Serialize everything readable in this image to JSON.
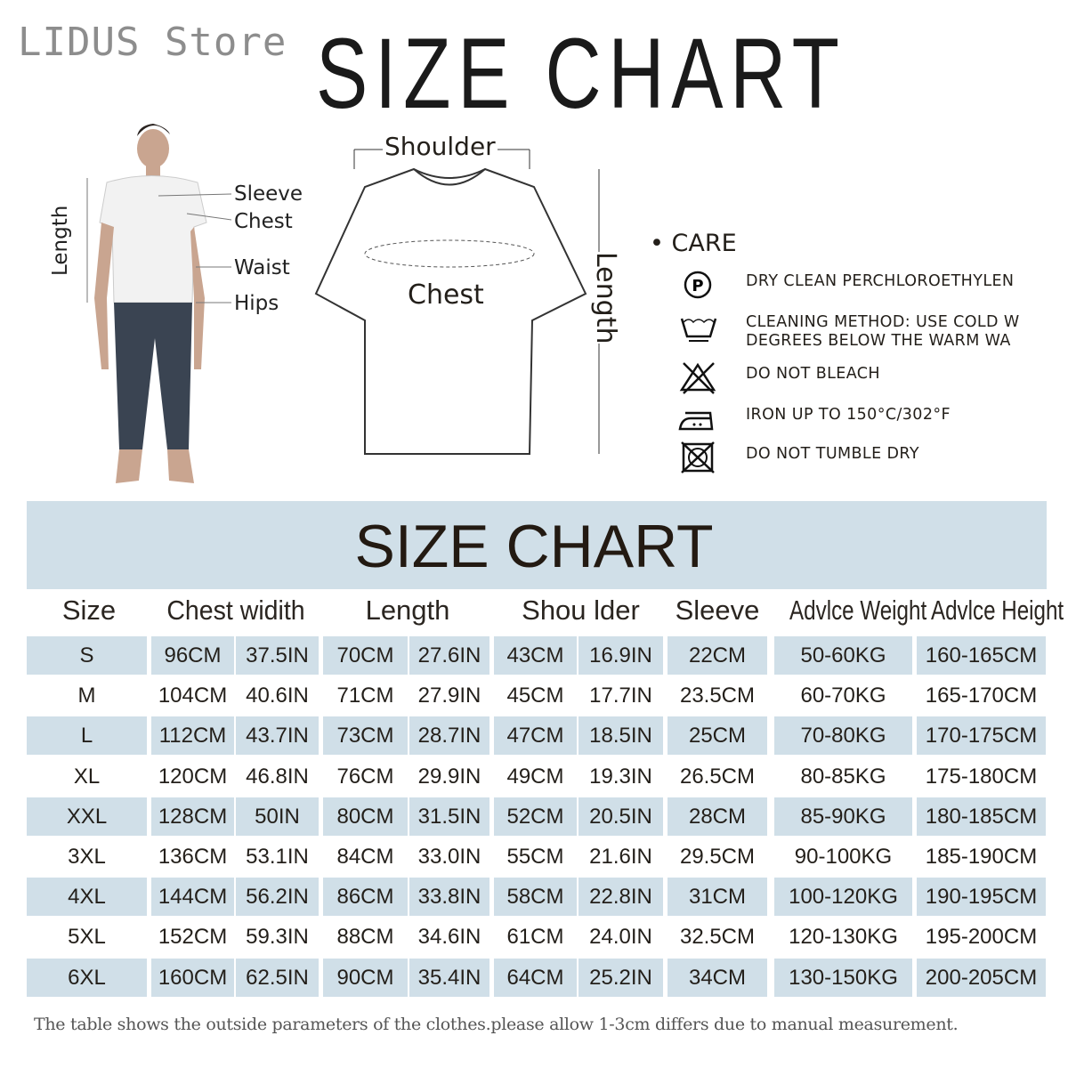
{
  "store_name": "LIDUS Store",
  "title": "SIZE CHART",
  "model_labels": {
    "length": "Length",
    "sleeve": "Sleeve",
    "chest": "Chest",
    "waist": "Waist",
    "hips": "Hips"
  },
  "shirt_labels": {
    "shoulder": "Shoulder",
    "chest": "Chest",
    "length": "Length"
  },
  "care": {
    "heading": "CARE",
    "items": [
      {
        "icon": "dry-clean-p-icon",
        "lines": [
          "DRY CLEAN PERCHLOROETHYLEN"
        ]
      },
      {
        "icon": "wash-tub-icon",
        "lines": [
          "CLEANING METHOD: USE COLD W",
          "DEGREES BELOW THE WARM WA"
        ]
      },
      {
        "icon": "no-bleach-icon",
        "lines": [
          "DO NOT BLEACH"
        ]
      },
      {
        "icon": "iron-icon",
        "lines": [
          "IRON UP TO 150°C/302°F"
        ]
      },
      {
        "icon": "no-tumble-dry-icon",
        "lines": [
          "DO NOT TUMBLE DRY"
        ]
      }
    ]
  },
  "colors": {
    "band": "#d0dfe8",
    "text": "#231f1a"
  },
  "table": {
    "title": "SIZE CHART",
    "headers": [
      "Size",
      "Chest widith",
      "Length",
      "Shou lder",
      "Sleeve",
      "Advlce Weight",
      "Advlce Height"
    ],
    "rows": [
      [
        "S",
        "96CM",
        "37.5IN",
        "70CM",
        "27.6IN",
        "43CM",
        "16.9IN",
        "22CM",
        "50-60KG",
        "160-165CM"
      ],
      [
        "M",
        "104CM",
        "40.6IN",
        "71CM",
        "27.9IN",
        "45CM",
        "17.7IN",
        "23.5CM",
        "60-70KG",
        "165-170CM"
      ],
      [
        "L",
        "112CM",
        "43.7IN",
        "73CM",
        "28.7IN",
        "47CM",
        "18.5IN",
        "25CM",
        "70-80KG",
        "170-175CM"
      ],
      [
        "XL",
        "120CM",
        "46.8IN",
        "76CM",
        "29.9IN",
        "49CM",
        "19.3IN",
        "26.5CM",
        "80-85KG",
        "175-180CM"
      ],
      [
        "XXL",
        "128CM",
        "50IN",
        "80CM",
        "31.5IN",
        "52CM",
        "20.5IN",
        "28CM",
        "85-90KG",
        "180-185CM"
      ],
      [
        "3XL",
        "136CM",
        "53.1IN",
        "84CM",
        "33.0IN",
        "55CM",
        "21.6IN",
        "29.5CM",
        "90-100KG",
        "185-190CM"
      ],
      [
        "4XL",
        "144CM",
        "56.2IN",
        "86CM",
        "33.8IN",
        "58CM",
        "22.8IN",
        "31CM",
        "100-120KG",
        "190-195CM"
      ],
      [
        "5XL",
        "152CM",
        "59.3IN",
        "88CM",
        "34.6IN",
        "61CM",
        "24.0IN",
        "32.5CM",
        "120-130KG",
        "195-200CM"
      ],
      [
        "6XL",
        "160CM",
        "62.5IN",
        "90CM",
        "35.4IN",
        "64CM",
        "25.2IN",
        "34CM",
        "130-150KG",
        "200-205CM"
      ]
    ]
  },
  "footer": "The table shows the outside parameters of the clothes.please allow 1-3cm differs due to manual measurement."
}
